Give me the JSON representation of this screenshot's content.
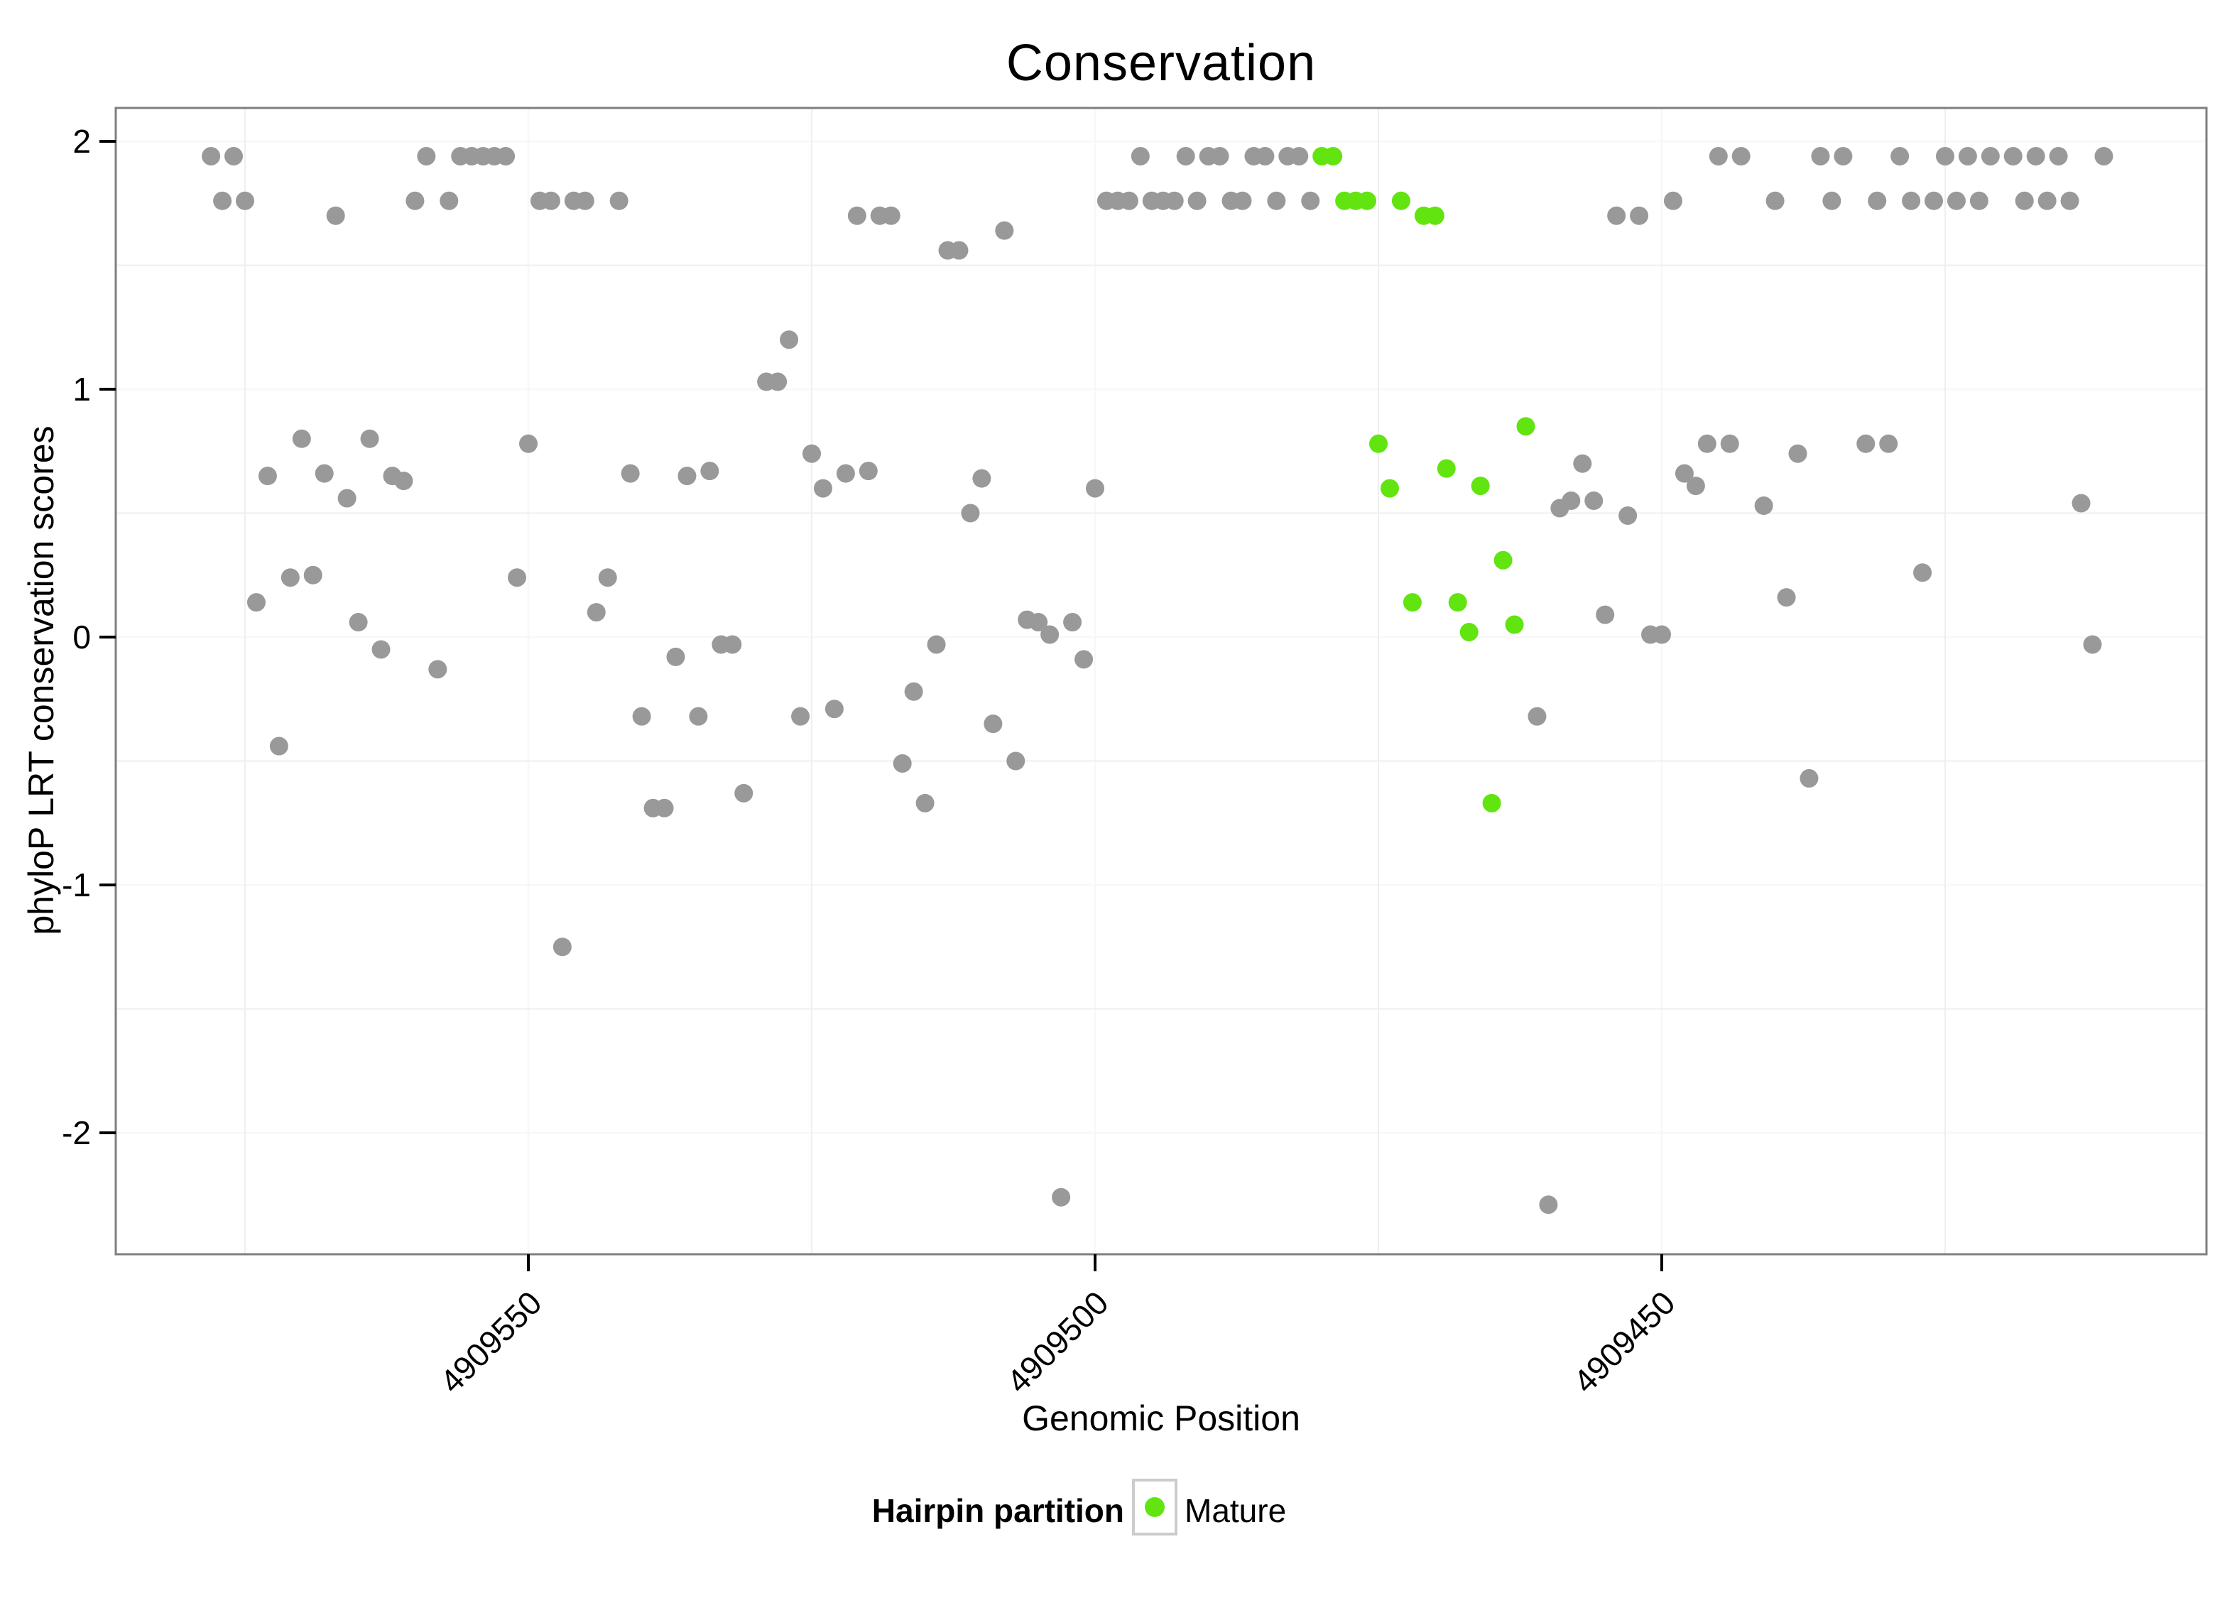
{
  "title": "Conservation",
  "x_axis": {
    "label": "Genomic Position",
    "tick_labels": [
      "4909550",
      "4909500",
      "4909450"
    ],
    "tick_values": [
      4909550,
      4909500,
      4909450
    ],
    "reversed": true
  },
  "y_axis": {
    "label": "phyloP LRT conservation scores",
    "tick_labels": [
      "2",
      "1",
      "0",
      "-1",
      "-2"
    ],
    "tick_values": [
      2,
      1,
      0,
      -1,
      -2
    ]
  },
  "legend": {
    "title": "Hairpin partition",
    "items": [
      {
        "label": "Mature",
        "color": "#62E410"
      }
    ],
    "position": "bottom"
  },
  "colors": {
    "background": "#ffffff",
    "point_gray": "#999999",
    "point_mature": "#62E410",
    "panel_border": "#7f7f7f",
    "grid_minor": "#efefef",
    "grid_major": "#f8f8f8",
    "tick_mark": "#000000",
    "legend_key_border": "#cccccc"
  },
  "chart_data": {
    "type": "scatter",
    "title": "Conservation",
    "xlabel": "Genomic Position",
    "ylabel": "phyloP LRT conservation scores",
    "xlim": [
      4909586,
      4909402
    ],
    "ylim": [
      -2.49,
      2.14
    ],
    "x_axis_reversed": true,
    "grid": {
      "minor_x": [
        4909575,
        4909525,
        4909475,
        4909425
      ],
      "minor_y": [
        1.5,
        0.5,
        -0.5,
        -1.5
      ],
      "major_x": [
        4909550,
        4909500,
        4909450
      ],
      "major_y": [
        2,
        1,
        0,
        -1,
        -2
      ]
    },
    "legend_position": "bottom",
    "series": [
      {
        "name": "",
        "legend_visible": false,
        "color": "#999999",
        "points": [
          [
            4909578,
            1.94
          ],
          [
            4909577,
            1.76
          ],
          [
            4909576,
            1.94
          ],
          [
            4909575,
            1.76
          ],
          [
            4909574,
            0.14
          ],
          [
            4909573,
            0.65
          ],
          [
            4909572,
            -0.44
          ],
          [
            4909571,
            0.24
          ],
          [
            4909570,
            0.8
          ],
          [
            4909569,
            0.25
          ],
          [
            4909568,
            0.66
          ],
          [
            4909567,
            1.7
          ],
          [
            4909566,
            0.56
          ],
          [
            4909565,
            0.06
          ],
          [
            4909564,
            0.8
          ],
          [
            4909563,
            -0.05
          ],
          [
            4909562,
            0.65
          ],
          [
            4909561,
            0.63
          ],
          [
            4909560,
            1.76
          ],
          [
            4909559,
            1.94
          ],
          [
            4909558,
            -0.13
          ],
          [
            4909557,
            1.76
          ],
          [
            4909556,
            1.94
          ],
          [
            4909555,
            1.94
          ],
          [
            4909554,
            1.94
          ],
          [
            4909553,
            1.94
          ],
          [
            4909552,
            1.94
          ],
          [
            4909551,
            0.24
          ],
          [
            4909550,
            0.78
          ],
          [
            4909549,
            1.76
          ],
          [
            4909548,
            1.76
          ],
          [
            4909547,
            -1.25
          ],
          [
            4909546,
            1.76
          ],
          [
            4909545,
            1.76
          ],
          [
            4909544,
            0.1
          ],
          [
            4909543,
            0.24
          ],
          [
            4909542,
            1.76
          ],
          [
            4909541,
            0.66
          ],
          [
            4909540,
            -0.32
          ],
          [
            4909539,
            -0.69
          ],
          [
            4909538,
            -0.69
          ],
          [
            4909537,
            -0.08
          ],
          [
            4909536,
            0.65
          ],
          [
            4909535,
            -0.32
          ],
          [
            4909534,
            0.67
          ],
          [
            4909533,
            -0.03
          ],
          [
            4909532,
            -0.03
          ],
          [
            4909531,
            -0.63
          ],
          [
            4909529,
            1.03
          ],
          [
            4909528,
            1.03
          ],
          [
            4909527,
            1.2
          ],
          [
            4909526,
            -0.32
          ],
          [
            4909525,
            0.74
          ],
          [
            4909524,
            0.6
          ],
          [
            4909523,
            -0.29
          ],
          [
            4909522,
            0.66
          ],
          [
            4909521,
            1.7
          ],
          [
            4909520,
            0.67
          ],
          [
            4909519,
            1.7
          ],
          [
            4909518,
            1.7
          ],
          [
            4909517,
            -0.51
          ],
          [
            4909516,
            -0.22
          ],
          [
            4909515,
            -0.67
          ],
          [
            4909514,
            -0.03
          ],
          [
            4909513,
            1.56
          ],
          [
            4909512,
            1.56
          ],
          [
            4909511,
            0.5
          ],
          [
            4909510,
            0.64
          ],
          [
            4909509,
            -0.35
          ],
          [
            4909508,
            1.64
          ],
          [
            4909507,
            -0.5
          ],
          [
            4909506,
            0.07
          ],
          [
            4909505,
            0.06
          ],
          [
            4909504,
            0.01
          ],
          [
            4909503,
            -2.26
          ],
          [
            4909502,
            0.06
          ],
          [
            4909501,
            -0.09
          ],
          [
            4909500,
            0.6
          ],
          [
            4909499,
            1.76
          ],
          [
            4909498,
            1.76
          ],
          [
            4909497,
            1.76
          ],
          [
            4909496,
            1.94
          ],
          [
            4909495,
            1.76
          ],
          [
            4909494,
            1.76
          ],
          [
            4909493,
            1.76
          ],
          [
            4909492,
            1.94
          ],
          [
            4909491,
            1.76
          ],
          [
            4909490,
            1.94
          ],
          [
            4909489,
            1.94
          ],
          [
            4909488,
            1.76
          ],
          [
            4909487,
            1.76
          ],
          [
            4909486,
            1.94
          ],
          [
            4909485,
            1.94
          ],
          [
            4909484,
            1.76
          ],
          [
            4909483,
            1.94
          ],
          [
            4909482,
            1.94
          ],
          [
            4909481,
            1.76
          ],
          [
            4909461,
            -0.32
          ],
          [
            4909460,
            -2.29
          ],
          [
            4909459,
            0.52
          ],
          [
            4909458,
            0.55
          ],
          [
            4909457,
            0.7
          ],
          [
            4909456,
            0.55
          ],
          [
            4909455,
            0.09
          ],
          [
            4909454,
            1.7
          ],
          [
            4909453,
            0.49
          ],
          [
            4909452,
            1.7
          ],
          [
            4909451,
            0.01
          ],
          [
            4909450,
            0.01
          ],
          [
            4909449,
            1.76
          ],
          [
            4909448,
            0.66
          ],
          [
            4909447,
            0.61
          ],
          [
            4909446,
            0.78
          ],
          [
            4909445,
            1.94
          ],
          [
            4909444,
            0.78
          ],
          [
            4909443,
            1.94
          ],
          [
            4909441,
            0.53
          ],
          [
            4909440,
            1.76
          ],
          [
            4909439,
            0.16
          ],
          [
            4909438,
            0.74
          ],
          [
            4909437,
            -0.57
          ],
          [
            4909436,
            1.94
          ],
          [
            4909435,
            1.76
          ],
          [
            4909434,
            1.94
          ],
          [
            4909432,
            0.78
          ],
          [
            4909431,
            1.76
          ],
          [
            4909430,
            0.78
          ],
          [
            4909429,
            1.94
          ],
          [
            4909428,
            1.76
          ],
          [
            4909427,
            0.26
          ],
          [
            4909426,
            1.76
          ],
          [
            4909425,
            1.94
          ],
          [
            4909424,
            1.76
          ],
          [
            4909423,
            1.94
          ],
          [
            4909422,
            1.76
          ],
          [
            4909421,
            1.94
          ],
          [
            4909419,
            1.94
          ],
          [
            4909418,
            1.76
          ],
          [
            4909417,
            1.94
          ],
          [
            4909416,
            1.76
          ],
          [
            4909415,
            1.94
          ],
          [
            4909414,
            1.76
          ],
          [
            4909413,
            0.54
          ],
          [
            4909412,
            -0.03
          ],
          [
            4909411,
            1.94
          ]
        ]
      },
      {
        "name": "Mature",
        "legend_visible": true,
        "color": "#62E410",
        "points": [
          [
            4909480,
            1.94
          ],
          [
            4909479,
            1.94
          ],
          [
            4909478,
            1.76
          ],
          [
            4909477,
            1.76
          ],
          [
            4909476,
            1.76
          ],
          [
            4909475,
            0.78
          ],
          [
            4909474,
            0.6
          ],
          [
            4909473,
            1.76
          ],
          [
            4909472,
            0.14
          ],
          [
            4909471,
            1.7
          ],
          [
            4909470,
            1.7
          ],
          [
            4909469,
            0.68
          ],
          [
            4909468,
            0.14
          ],
          [
            4909467,
            0.02
          ],
          [
            4909466,
            0.61
          ],
          [
            4909465,
            -0.67
          ],
          [
            4909464,
            0.31
          ],
          [
            4909463,
            0.05
          ],
          [
            4909462,
            0.85
          ]
        ]
      }
    ]
  }
}
